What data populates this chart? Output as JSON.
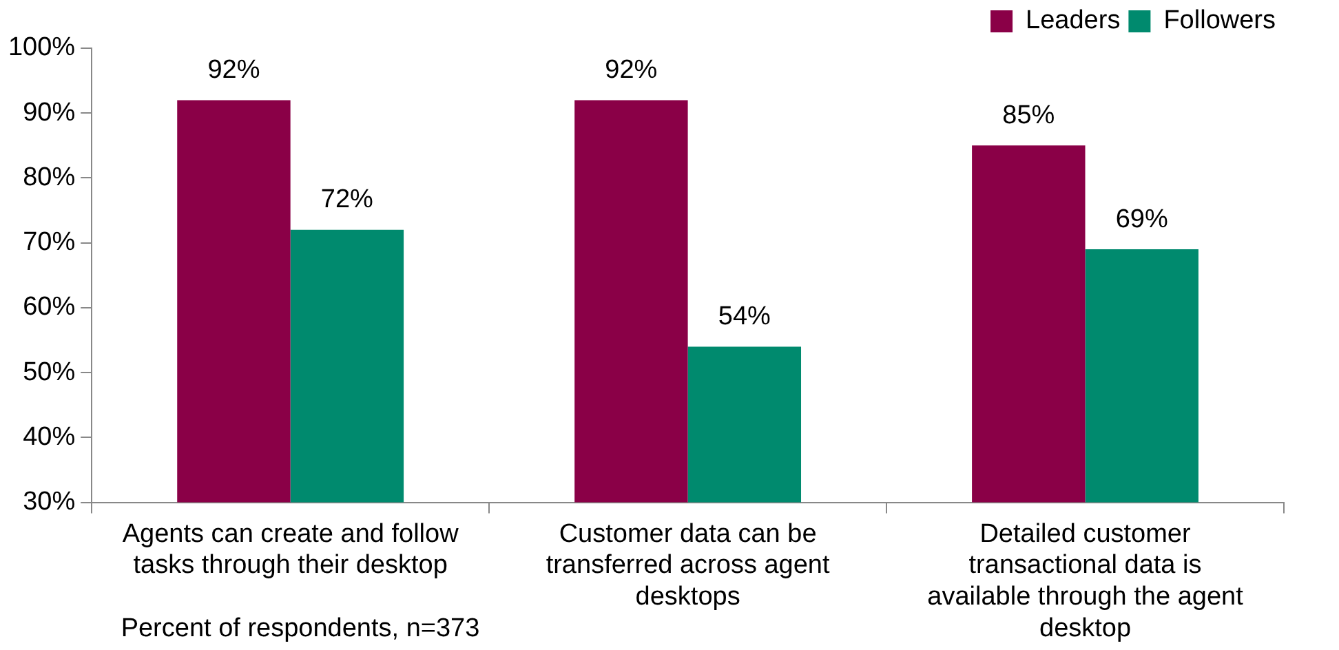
{
  "chart_data": {
    "type": "bar",
    "categories": [
      "Agents can create and follow tasks through their desktop",
      "Customer data can be transferred across agent desktops",
      "Detailed customer transactional data is available through the agent desktop"
    ],
    "series": [
      {
        "name": "Leaders",
        "color": "#8a0047",
        "values": [
          92,
          92,
          85
        ]
      },
      {
        "name": "Followers",
        "color": "#008a6e",
        "values": [
          72,
          54,
          69
        ]
      }
    ],
    "ylim": [
      30,
      100
    ],
    "yticks": [
      {
        "value": 30,
        "label": "30%"
      },
      {
        "value": 40,
        "label": "40%"
      },
      {
        "value": 50,
        "label": "50%"
      },
      {
        "value": 60,
        "label": "60%"
      },
      {
        "value": 70,
        "label": "70%"
      },
      {
        "value": 80,
        "label": "80%"
      },
      {
        "value": 90,
        "label": "90%"
      },
      {
        "value": 100,
        "label": "100%"
      }
    ],
    "value_labels": [
      [
        "92%",
        "92%",
        "85%"
      ],
      [
        "72%",
        "54%",
        "69%"
      ]
    ],
    "grid": false,
    "legend": "top right",
    "annotations": [
      "Percent of respondents, n=373"
    ]
  }
}
